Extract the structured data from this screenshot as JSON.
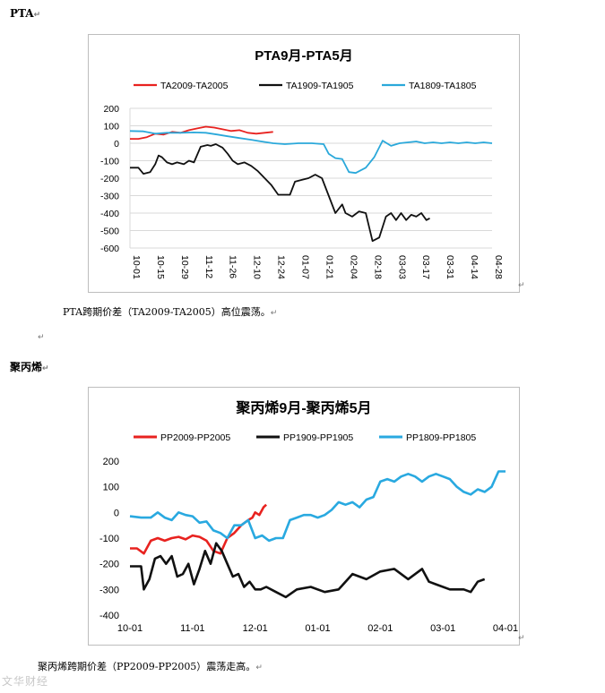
{
  "sections": [
    {
      "heading": "PTA",
      "caption": "PTA跨期价差（TA2009-TA2005）高位震荡。"
    },
    {
      "heading": "聚丙烯",
      "caption": "聚丙烯跨期价差（PP2009-PP2005）震荡走高。"
    }
  ],
  "para_mark": "↵",
  "watermark": "文华财经",
  "chart_data": [
    {
      "type": "line",
      "title": "PTA9月-PTA5月",
      "x_tick_labels": [
        "10-01",
        "10-15",
        "10-29",
        "11-12",
        "11-26",
        "12-10",
        "12-24",
        "01-07",
        "01-21",
        "02-04",
        "02-18",
        "03-03",
        "03-17",
        "03-31",
        "04-14",
        "04-28"
      ],
      "ylim": [
        -600,
        200
      ],
      "y_ticks": [
        200,
        100,
        0,
        -100,
        -200,
        -300,
        -400,
        -500,
        -600
      ],
      "grid": true,
      "legend_position": "top",
      "series": [
        {
          "name": "TA2009-TA2005",
          "color": "#e8221f",
          "x": [
            0,
            5,
            10,
            15,
            20,
            25,
            30,
            35,
            40,
            45,
            50,
            55,
            60,
            65,
            70,
            75,
            80,
            85
          ],
          "y": [
            25,
            25,
            35,
            55,
            50,
            65,
            60,
            75,
            85,
            95,
            90,
            80,
            70,
            75,
            60,
            55,
            60,
            65
          ]
        },
        {
          "name": "TA1909-TA1905",
          "color": "#111111",
          "x": [
            0,
            5,
            8,
            12,
            15,
            17,
            19,
            22,
            25,
            28,
            32,
            35,
            38,
            42,
            46,
            48,
            51,
            55,
            58,
            61,
            64,
            68,
            72,
            76,
            80,
            84,
            88,
            92,
            95,
            98,
            102,
            106,
            110,
            114,
            118,
            122,
            126,
            128,
            132,
            136,
            140,
            144,
            148,
            152,
            155,
            158,
            161,
            164,
            167,
            170,
            173,
            176,
            178
          ],
          "y": [
            -140,
            -140,
            -175,
            -165,
            -120,
            -70,
            -80,
            -110,
            -120,
            -110,
            -120,
            -100,
            -110,
            -20,
            -10,
            -15,
            -5,
            -25,
            -60,
            -100,
            -120,
            -110,
            -130,
            -160,
            -200,
            -240,
            -295,
            -295,
            -295,
            -220,
            -210,
            -200,
            -180,
            -200,
            -300,
            -400,
            -350,
            -400,
            -420,
            -390,
            -400,
            -560,
            -540,
            -420,
            -400,
            -440,
            -400,
            -440,
            -410,
            -420,
            -400,
            -440,
            -430
          ]
        },
        {
          "name": "TA1809-TA1805",
          "color": "#2aa8da",
          "x": [
            0,
            8,
            15,
            22,
            30,
            38,
            45,
            52,
            58,
            65,
            72,
            78,
            85,
            92,
            100,
            108,
            115,
            118,
            122,
            126,
            130,
            134,
            140,
            145,
            150,
            155,
            160,
            165,
            170,
            175,
            180,
            185,
            190,
            195,
            200,
            205,
            210,
            215
          ],
          "y": [
            70,
            68,
            55,
            60,
            60,
            62,
            60,
            50,
            40,
            30,
            20,
            10,
            0,
            -5,
            0,
            0,
            -5,
            -60,
            -85,
            -90,
            -165,
            -170,
            -140,
            -80,
            15,
            -15,
            0,
            5,
            10,
            0,
            5,
            0,
            5,
            0,
            5,
            0,
            5,
            0
          ]
        }
      ]
    },
    {
      "type": "line",
      "title": "聚丙烯9月-聚丙烯5月",
      "x_tick_labels": [
        "10-01",
        "11-01",
        "12-01",
        "01-01",
        "02-01",
        "03-01",
        "04-01"
      ],
      "ylim": [
        -400,
        200
      ],
      "y_ticks": [
        200,
        100,
        0,
        -100,
        -200,
        -300,
        -400
      ],
      "grid": false,
      "legend_position": "top",
      "series": [
        {
          "name": "PP2009-PP2005",
          "color": "#e8221f",
          "x": [
            0,
            5,
            10,
            15,
            20,
            25,
            30,
            35,
            40,
            45,
            50,
            55,
            60,
            65,
            70,
            75,
            80,
            85,
            88,
            90,
            93,
            96,
            98
          ],
          "y": [
            -140,
            -140,
            -160,
            -110,
            -100,
            -110,
            -100,
            -95,
            -105,
            -90,
            -95,
            -110,
            -150,
            -160,
            -100,
            -80,
            -50,
            -30,
            -20,
            0,
            -10,
            20,
            30
          ]
        },
        {
          "name": "PP1909-PP1905",
          "color": "#111111",
          "x": [
            0,
            5,
            8,
            10,
            14,
            18,
            22,
            26,
            30,
            34,
            38,
            42,
            46,
            50,
            54,
            58,
            62,
            66,
            70,
            74,
            78,
            82,
            86,
            90,
            94,
            98,
            105,
            112,
            120,
            130,
            140,
            150,
            160,
            170,
            180,
            190,
            200,
            210,
            215,
            220,
            230,
            240,
            245,
            250,
            255
          ],
          "y": [
            -210,
            -210,
            -210,
            -300,
            -260,
            -180,
            -170,
            -200,
            -170,
            -250,
            -240,
            -200,
            -280,
            -220,
            -150,
            -200,
            -120,
            -150,
            -200,
            -250,
            -240,
            -290,
            -270,
            -300,
            -300,
            -290,
            -310,
            -330,
            -300,
            -290,
            -310,
            -300,
            -240,
            -260,
            -230,
            -220,
            -260,
            -220,
            -270,
            -280,
            -300,
            -300,
            -310,
            -270,
            -260
          ]
        },
        {
          "name": "PP1809-PP1805",
          "color": "#29a9e0",
          "x": [
            0,
            8,
            15,
            20,
            25,
            30,
            35,
            40,
            45,
            50,
            55,
            60,
            65,
            70,
            75,
            80,
            85,
            90,
            95,
            100,
            105,
            110,
            115,
            120,
            125,
            130,
            135,
            140,
            145,
            150,
            155,
            160,
            165,
            170,
            175,
            180,
            185,
            190,
            195,
            200,
            205,
            210,
            215,
            220,
            225,
            230,
            235,
            240,
            245,
            250,
            255,
            260,
            265,
            270
          ],
          "y": [
            -15,
            -20,
            -20,
            0,
            -20,
            -30,
            0,
            -10,
            -15,
            -40,
            -35,
            -70,
            -80,
            -100,
            -50,
            -50,
            -30,
            -100,
            -90,
            -110,
            -100,
            -100,
            -30,
            -20,
            -10,
            -10,
            -20,
            -10,
            10,
            40,
            30,
            40,
            20,
            50,
            60,
            120,
            130,
            120,
            140,
            150,
            140,
            120,
            140,
            150,
            140,
            130,
            100,
            80,
            70,
            90,
            80,
            100,
            160,
            160
          ]
        }
      ]
    }
  ]
}
